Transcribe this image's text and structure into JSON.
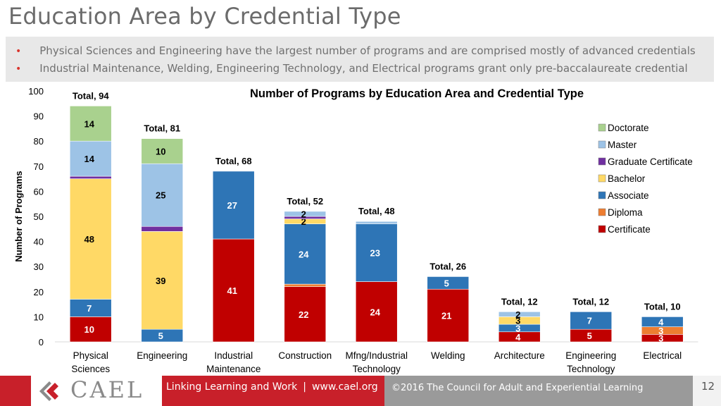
{
  "slide": {
    "title": "Education Area by Credential Type",
    "bullets": [
      "Physical Sciences and Engineering have the largest number of programs and are comprised mostly of advanced credentials",
      "Industrial Maintenance, Welding, Engineering Technology, and Electrical programs grant only pre-baccalaureate credential"
    ],
    "bullet_marker": "•",
    "page_number": "12"
  },
  "footer": {
    "logo_text": "CAEL",
    "tagline": "Linking Learning and Work",
    "separator": "|",
    "website": "www.cael.org",
    "copyright": "©2016 The Council for Adult and Experiential Learning"
  },
  "chart_data": {
    "type": "bar",
    "stacked": true,
    "title": "Number of Programs by Education Area and Credential Type",
    "ylabel": "Number of Programs",
    "xlabel": "",
    "ylim": [
      0,
      100
    ],
    "yticks": [
      0,
      10,
      20,
      30,
      40,
      50,
      60,
      70,
      80,
      90,
      100
    ],
    "legend_position": "right",
    "categories": [
      [
        "Physical",
        "Sciences"
      ],
      [
        "Engineering"
      ],
      [
        "Industrial",
        "Maintenance"
      ],
      [
        "Construction"
      ],
      [
        "Mfng/Industrial",
        "Technology"
      ],
      [
        "Welding"
      ],
      [
        "Architecture"
      ],
      [
        "Engineering",
        "Technology"
      ],
      [
        "Electrical"
      ]
    ],
    "totals": [
      "Total, 94",
      "Total, 81",
      "Total, 68",
      "Total, 52",
      "Total, 48",
      "Total, 26",
      "Total, 12",
      "Total, 12",
      "Total, 10"
    ],
    "series": [
      {
        "name": "Certificate",
        "color": "#c00000",
        "values": [
          10,
          0,
          41,
          22,
          24,
          21,
          4,
          5,
          3
        ],
        "labels": [
          "10",
          "",
          "41",
          "22",
          "24",
          "21",
          "4",
          "5",
          "3"
        ]
      },
      {
        "name": "Diploma",
        "color": "#ed7d31",
        "values": [
          0,
          0,
          0,
          1,
          0,
          0,
          0,
          0,
          3
        ],
        "labels": [
          "",
          "",
          "",
          "",
          "",
          "",
          "",
          "",
          "3"
        ]
      },
      {
        "name": "Associate",
        "color": "#2e75b6",
        "values": [
          7,
          5,
          27,
          24,
          23,
          5,
          3,
          7,
          4
        ],
        "labels": [
          "7",
          "5",
          "27",
          "24",
          "23",
          "5",
          "3",
          "7",
          "4"
        ]
      },
      {
        "name": "Bachelor",
        "color": "#ffd966",
        "values": [
          48,
          39,
          0,
          2,
          0,
          0,
          3,
          0,
          0
        ],
        "labels": [
          "48",
          "39",
          "",
          "2",
          "",
          "",
          "3",
          "",
          ""
        ]
      },
      {
        "name": "Graduate Certificate",
        "color": "#7030a0",
        "values": [
          1,
          2,
          0,
          1,
          0,
          0,
          0,
          0,
          0
        ],
        "labels": [
          "",
          "",
          "",
          "",
          "",
          "",
          "",
          "",
          ""
        ]
      },
      {
        "name": "Master",
        "color": "#9dc3e6",
        "values": [
          14,
          25,
          0,
          2,
          1,
          0,
          2,
          0,
          0
        ],
        "labels": [
          "14",
          "25",
          "",
          "2",
          "",
          "",
          "2",
          "",
          ""
        ]
      },
      {
        "name": "Doctorate",
        "color": "#a9d18e",
        "values": [
          14,
          10,
          0,
          0,
          0,
          0,
          0,
          0,
          0
        ],
        "labels": [
          "14",
          "10",
          "",
          "",
          "",
          "",
          "",
          "",
          ""
        ]
      }
    ],
    "legend_order": [
      "Doctorate",
      "Master",
      "Graduate Certificate",
      "Bachelor",
      "Associate",
      "Diploma",
      "Certificate"
    ]
  }
}
